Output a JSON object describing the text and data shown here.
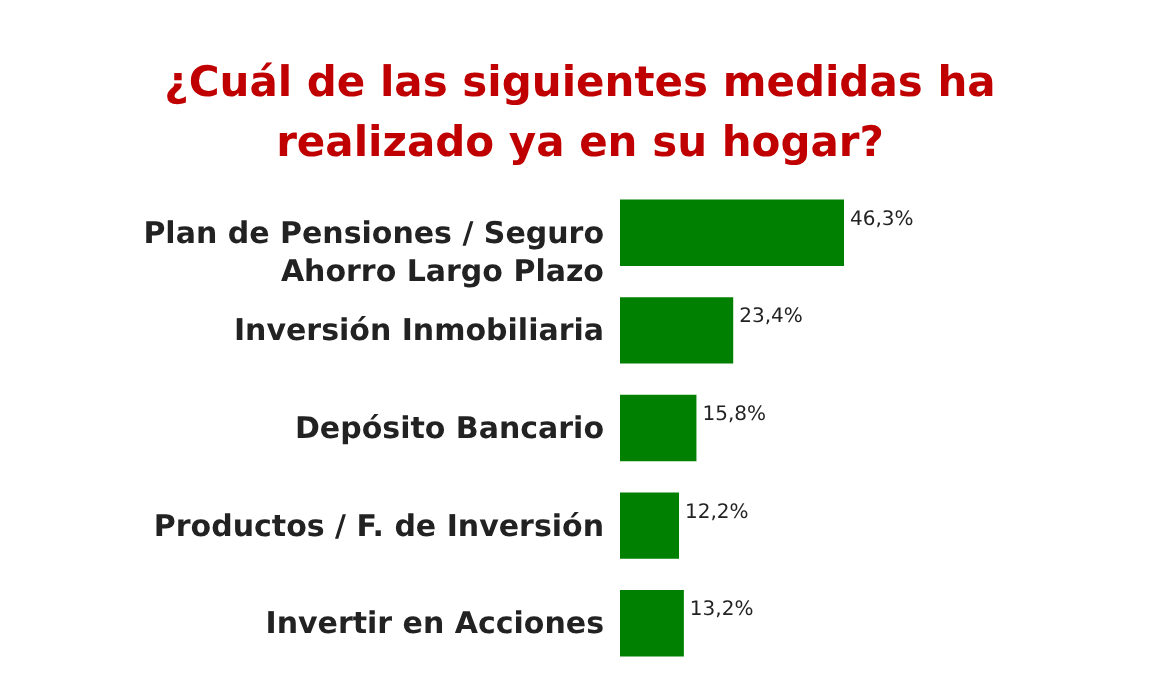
{
  "chart_data": {
    "type": "bar",
    "orientation": "horizontal",
    "title": "¿Cuál de las siguientes medidas ha realizado ya en su hogar?",
    "categories": [
      "Plan de Pensiones / Seguro Ahorro Largo Plazo",
      "Inversión Inmobiliaria",
      "Depósito Bancario",
      "Productos / F. de Inversión",
      "Invertir en Acciones"
    ],
    "values": [
      46.3,
      23.4,
      15.8,
      12.2,
      13.2
    ],
    "value_labels": [
      "46,3%",
      "23,4%",
      "15,8%",
      "12,2%",
      "13,2%"
    ],
    "color": "#008000"
  }
}
